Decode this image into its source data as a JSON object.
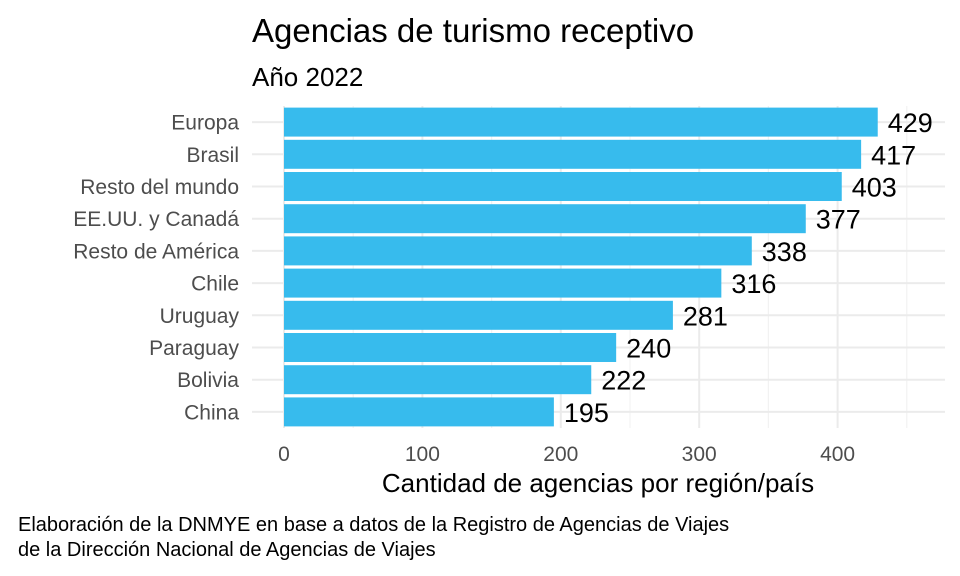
{
  "chart_data": {
    "type": "bar",
    "orientation": "horizontal",
    "title": "Agencias de turismo receptivo",
    "subtitle": "Año 2022",
    "xlabel": "Cantidad de agencias por región/país",
    "ylabel": "",
    "categories": [
      "Europa",
      "Brasil",
      "Resto del mundo",
      "EE.UU. y Canadá",
      "Resto de América",
      "Chile",
      "Uruguay",
      "Paraguay",
      "Bolivia",
      "China"
    ],
    "values": [
      429,
      417,
      403,
      377,
      338,
      316,
      281,
      240,
      222,
      195
    ],
    "value_labels": [
      "429",
      "417",
      "403",
      "377",
      "338",
      "316",
      "281",
      "240",
      "222",
      "195"
    ],
    "xticks": [
      0,
      100,
      200,
      300,
      400
    ],
    "xtick_labels": [
      "0",
      "100",
      "200",
      "300",
      "400"
    ],
    "xlim": [
      0,
      475
    ],
    "grid": true,
    "bar_color": "#37bbed",
    "caption_lines": [
      "Elaboración de la DNMYE en base a datos de la Registro de Agencias de Viajes",
      "de la Dirección Nacional de Agencias de Viajes"
    ]
  }
}
